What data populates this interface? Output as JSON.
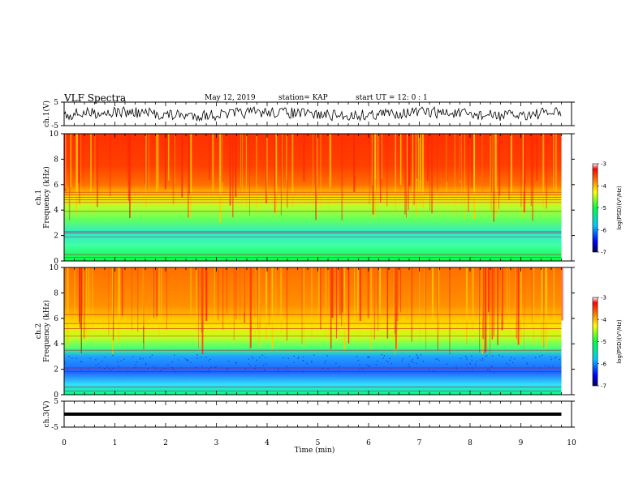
{
  "header": {
    "title": "VLF Spectra",
    "date": "May 12, 2019",
    "station": "station= KAP",
    "start": "start  UT  =   12: 0  : 1"
  },
  "chart_data": {
    "type": "heatmap",
    "x_axis": {
      "label": "Time  (min)",
      "range": [
        0,
        10
      ],
      "ticks": [
        "0",
        "1",
        "2",
        "3",
        "4",
        "5",
        "6",
        "7",
        "8",
        "9",
        "10"
      ]
    },
    "panels": [
      {
        "id": "ch1_wave",
        "type": "line",
        "ylabel": "ch.1(V)",
        "yrange": [
          -5,
          5
        ],
        "yticks": [
          "5",
          "-5"
        ]
      },
      {
        "id": "ch1_spec",
        "type": "heatmap",
        "ylabel_line1": "ch.1",
        "ylabel_line2": "Frequency  (kHz)",
        "yrange": [
          0,
          10
        ],
        "yticks": [
          "0",
          "2",
          "4",
          "6",
          "8",
          "10"
        ],
        "colorbar": {
          "label": "log(PSD)(V²/Hz)",
          "range": [
            -7,
            -3
          ],
          "ticks": [
            "-3",
            "-4",
            "-5",
            "-6",
            "-7"
          ]
        }
      },
      {
        "id": "ch2_spec",
        "type": "heatmap",
        "ylabel_line1": "ch.2",
        "ylabel_line2": "Frequency  (kHz)",
        "yrange": [
          0,
          10
        ],
        "yticks": [
          "0",
          "2",
          "4",
          "6",
          "8",
          "10"
        ],
        "colorbar": {
          "label": "log(PSD)(V²/Hz)",
          "range": [
            -7,
            -3
          ],
          "ticks": [
            "-3",
            "-4",
            "-5",
            "-6",
            "-7"
          ]
        }
      },
      {
        "id": "ch3_wave",
        "type": "line",
        "ylabel": "ch.3(V)",
        "yrange": [
          -5,
          5
        ],
        "yticks": [
          "5",
          "-5"
        ],
        "constant_value": 0
      }
    ],
    "data_end_min": 9.8,
    "colors": {
      "high": "#ff0000",
      "mid": "#00ff00",
      "low": "#0000ff",
      "lowest": "#000080"
    }
  }
}
